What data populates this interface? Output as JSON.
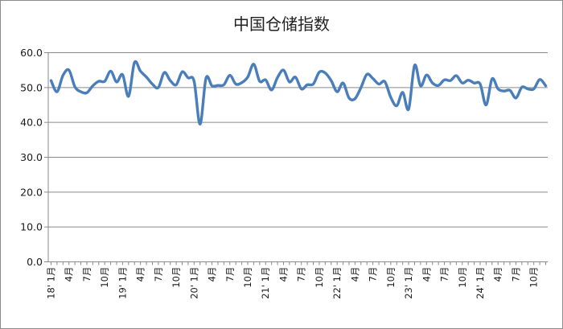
{
  "chart_data": {
    "type": "line",
    "title": "中国仓储指数",
    "xlabel": "",
    "ylabel": "",
    "ylim": [
      0,
      60
    ],
    "yticks": [
      "0.0",
      "10.0",
      "20.0",
      "30.0",
      "40.0",
      "50.0",
      "60.0"
    ],
    "grid": "horizontal",
    "legend": "none",
    "line_color": "#4a7ebb",
    "xtick_labels": [
      "18' 1月",
      "4月",
      "7月",
      "10月",
      "19' 1月",
      "4月",
      "7月",
      "10月",
      "20' 1月",
      "4月",
      "7月",
      "10月",
      "21' 1月",
      "4月",
      "7月",
      "10月",
      "22' 1月",
      "4月",
      "7月",
      "10月",
      "23' 1月",
      "4月",
      "7月",
      "10月",
      "24' 1月",
      "4月",
      "7月",
      "10月"
    ],
    "series": [
      {
        "values": [
          52.0,
          48.8,
          53.5,
          55.0,
          50.2,
          48.8,
          48.5,
          50.5,
          51.8,
          51.8,
          54.7,
          51.6,
          53.7,
          47.5,
          57.2,
          54.7,
          53.0,
          51.0,
          50.0,
          54.3,
          52.0,
          50.8,
          54.5,
          52.8,
          51.8,
          39.5,
          52.7,
          50.5,
          50.6,
          50.8,
          53.5,
          51.0,
          51.4,
          53.0,
          56.7,
          51.8,
          52.2,
          49.3,
          52.9,
          55.0,
          51.6,
          53.0,
          49.6,
          50.8,
          51.0,
          54.4,
          54.2,
          52.0,
          48.8,
          51.3,
          47.0,
          46.8,
          50.0,
          53.8,
          52.6,
          51.0,
          51.7,
          47.2,
          44.8,
          48.6,
          43.8,
          56.4,
          50.5,
          53.6,
          51.3,
          50.6,
          52.2,
          52.0,
          53.4,
          51.3,
          52.1,
          51.3,
          51.0,
          45.0,
          52.5,
          49.6,
          49.0,
          49.2,
          47.0,
          50.1,
          49.6,
          49.6,
          52.3,
          50.5
        ]
      }
    ]
  }
}
